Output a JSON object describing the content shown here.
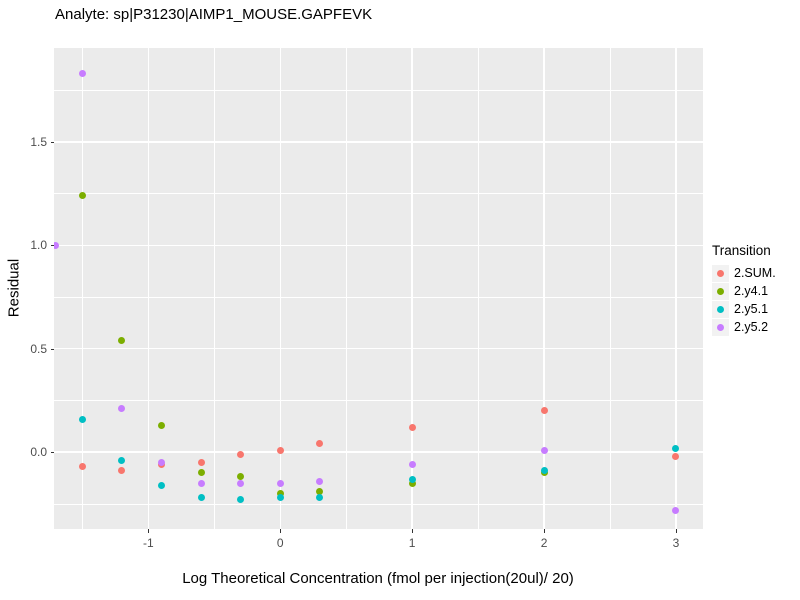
{
  "title": "Analyte: sp|P31230|AIMP1_MOUSE.GAPFEVK",
  "colors": {
    "panel_background": "#EBEBEB",
    "gridline": "#FFFFFF",
    "tick_label": "#4D4D4D",
    "legend_key_background": "#F2F2F2"
  },
  "chart_data": {
    "type": "scatter",
    "title": "Analyte: sp|P31230|AIMP1_MOUSE.GAPFEVK",
    "xlabel": "Log Theoretical Concentration (fmol per injection(20ul)/ 20)",
    "ylabel": "Residual",
    "grid": true,
    "legend_title": "Transition",
    "legend_position": "right",
    "xlim": [
      -1.715,
      3.205
    ],
    "ylim": [
      -0.3715,
      1.954
    ],
    "x_ticks": [
      -1,
      0,
      1,
      2,
      3
    ],
    "x_tick_labels": [
      "-1",
      "0",
      "1",
      "2",
      "3"
    ],
    "x_minor_gridlines": [
      -1.5,
      -0.5,
      0.5,
      1.5,
      2.5
    ],
    "y_ticks": [
      0.0,
      0.5,
      1.0,
      1.5
    ],
    "y_tick_labels": [
      "0.0",
      "0.5",
      "1.0",
      "1.5"
    ],
    "y_minor_gridlines": [
      -0.25,
      0.25,
      0.75,
      1.25,
      1.75
    ],
    "series": [
      {
        "name": "2.SUM.",
        "color": "#F8766D",
        "points": [
          [
            -1.5,
            -0.07
          ],
          [
            -1.2,
            -0.09
          ],
          [
            -0.9,
            -0.06
          ],
          [
            -0.6,
            -0.05
          ],
          [
            -0.3,
            -0.01
          ],
          [
            0,
            0.01
          ],
          [
            0.3,
            0.04
          ],
          [
            1,
            0.12
          ],
          [
            2,
            0.2
          ],
          [
            3,
            -0.02
          ]
        ]
      },
      {
        "name": "2.y4.1",
        "color": "#7CAE00",
        "points": [
          [
            -1.5,
            1.24
          ],
          [
            -1.2,
            0.54
          ],
          [
            -0.9,
            0.13
          ],
          [
            -0.6,
            -0.1
          ],
          [
            -0.3,
            -0.12
          ],
          [
            0,
            -0.2
          ],
          [
            0.3,
            -0.19
          ],
          [
            1,
            -0.15
          ],
          [
            2,
            -0.1
          ]
        ]
      },
      {
        "name": "2.y5.1",
        "color": "#00BFC4",
        "points": [
          [
            -1.5,
            0.16
          ],
          [
            -1.2,
            -0.04
          ],
          [
            -0.9,
            -0.16
          ],
          [
            -0.6,
            -0.22
          ],
          [
            -0.3,
            -0.23
          ],
          [
            0,
            -0.22
          ],
          [
            0.3,
            -0.22
          ],
          [
            1,
            -0.13
          ],
          [
            2,
            -0.09
          ],
          [
            3,
            0.02
          ]
        ]
      },
      {
        "name": "2.y5.2",
        "color": "#C77CFF",
        "points": [
          [
            -1.7,
            1.0
          ],
          [
            -1.5,
            1.83
          ],
          [
            -1.2,
            0.21
          ],
          [
            -0.9,
            -0.05
          ],
          [
            -0.6,
            -0.15
          ],
          [
            -0.3,
            -0.15
          ],
          [
            0,
            -0.15
          ],
          [
            0.3,
            -0.14
          ],
          [
            1,
            -0.06
          ],
          [
            2,
            0.01
          ],
          [
            3,
            -0.28
          ]
        ]
      }
    ]
  }
}
